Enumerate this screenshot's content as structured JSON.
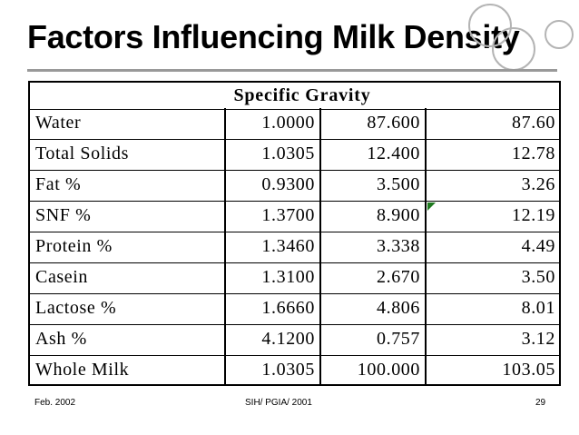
{
  "slide": {
    "title": "Factors Influencing Milk Density"
  },
  "table": {
    "header": "Specific Gravity",
    "rows": [
      {
        "name": "Water",
        "sg": "1.0000",
        "amount": "87.600",
        "product": "87.60"
      },
      {
        "name": "Total Solids",
        "sg": "1.0305",
        "amount": "12.400",
        "product": "12.78"
      },
      {
        "name": "Fat %",
        "sg": "0.9300",
        "amount": "3.500",
        "product": "3.26"
      },
      {
        "name": "SNF %",
        "sg": "1.3700",
        "amount": "8.900",
        "product": "12.19"
      },
      {
        "name": "Protein %",
        "sg": "1.3460",
        "amount": "3.338",
        "product": "4.49"
      },
      {
        "name": "Casein",
        "sg": "1.3100",
        "amount": "2.670",
        "product": "3.50"
      },
      {
        "name": "Lactose %",
        "sg": "1.6660",
        "amount": "4.806",
        "product": "8.01"
      },
      {
        "name": "Ash %",
        "sg": "4.1200",
        "amount": "0.757",
        "product": "3.12"
      },
      {
        "name": "Whole Milk",
        "sg": "1.0305",
        "amount": "100.000",
        "product": "103.05"
      }
    ]
  },
  "footer": {
    "date": "Feb. 2002",
    "center": "SIH/ PGIA/ 2001",
    "page": "29"
  },
  "colors": {
    "rule": "#999999",
    "deco_circle": "#b4b4b4",
    "cell_marker": "#1f7a1f"
  }
}
